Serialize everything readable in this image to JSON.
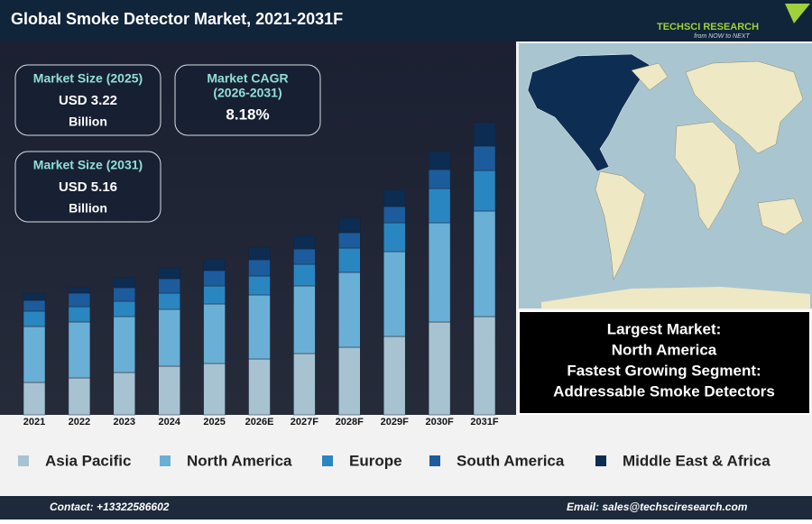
{
  "header": {
    "title": "Global Smoke Detector Market, 2021-2031F",
    "logo": "TECHSCI RESEARCH",
    "tagline": "from NOW to NEXT"
  },
  "kpis": [
    {
      "label": [
        "Market Size (2025)"
      ],
      "value": "USD 3.22",
      "unit": "Billion"
    },
    {
      "label": [
        "Market CAGR",
        "(2026-2031)"
      ],
      "value": "8.18%"
    },
    {
      "label": [
        "Market Size (2031)"
      ],
      "value": "USD 5.16",
      "unit": "Billion"
    }
  ],
  "highlights": [
    "Largest Market:",
    "North America",
    "Fastest Growing Segment:",
    "Addressable Smoke Detectors"
  ],
  "chart_data": {
    "type": "stacked-bar",
    "categories": [
      "2021",
      "2022",
      "2023",
      "2024",
      "2025",
      "2026E",
      "2027F",
      "2028F",
      "2029F",
      "2030F",
      "2031F"
    ],
    "series": [
      {
        "name": "Asia Pacific",
        "color": "#a7c3d1",
        "values": [
          36,
          41,
          47,
          54,
          57,
          62,
          68,
          75,
          87,
          103,
          109
        ]
      },
      {
        "name": "North America",
        "color": "#6ab0d6",
        "values": [
          62,
          62,
          62,
          63,
          66,
          71,
          75,
          83,
          94,
          110,
          117
        ]
      },
      {
        "name": "Europe",
        "color": "#2a86c0",
        "values": [
          17,
          17,
          17,
          18,
          20,
          21,
          24,
          27,
          32,
          38,
          45
        ]
      },
      {
        "name": "South America",
        "color": "#1c5c9c",
        "values": [
          12,
          15,
          15,
          16,
          17,
          18,
          17,
          17,
          18,
          21,
          27
        ]
      },
      {
        "name": "Middle East & Africa",
        "color": "#0c2c52",
        "values": [
          8,
          7,
          11,
          12,
          13,
          14,
          15,
          16,
          18,
          20,
          26
        ]
      }
    ]
  },
  "footer": {
    "contact": "Contact: +13322586602",
    "email": "Email: sales@techsciresearch.com"
  }
}
